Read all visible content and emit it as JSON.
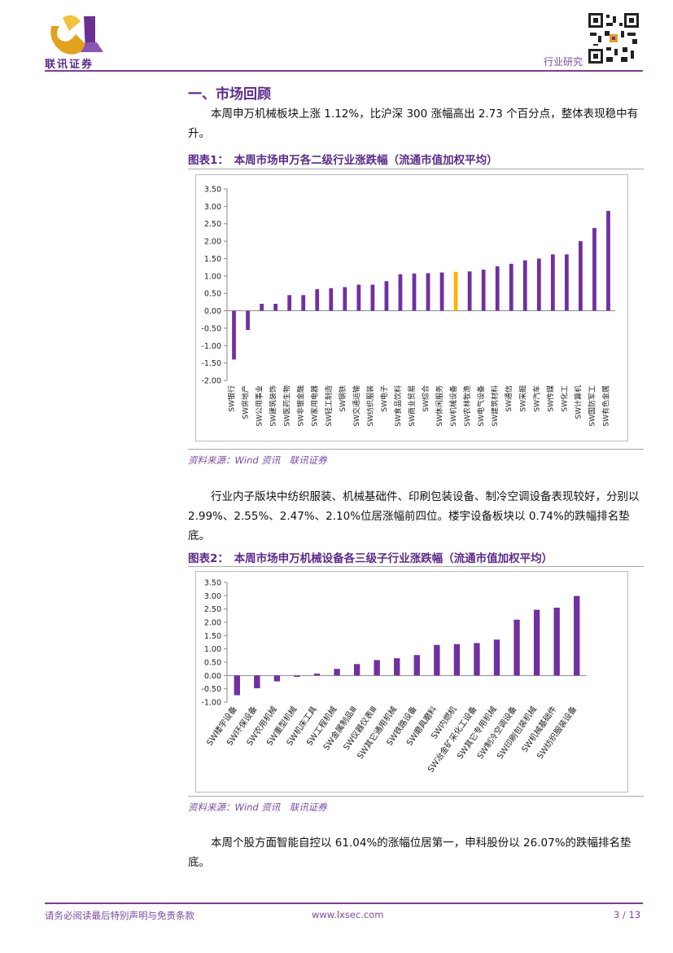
{
  "header": {
    "logo_text": "联讯证券",
    "category": "行业研究"
  },
  "section": {
    "title": "一、市场回顾",
    "para1": "本周申万机械板块上涨 1.12%，比沪深 300 涨幅高出 2.73 个百分点，整体表现稳中有升。",
    "fig1_caption": "图表1：　本周市场申万各二级行业涨跌幅（流通市值加权平均）",
    "fig1_source": "资料来源：Wind 资讯　联讯证券",
    "para2": "行业内子版块中纺织服装、机械基础件、印刷包装设备、制冷空调设备表现较好，分别以 2.99%、2.55%、2.47%、2.10%位居涨幅前四位。楼宇设备板块以 0.74%的跌幅排名垫底。",
    "fig2_caption": "图表2：　本周市场申万机械设备各三级子行业涨跌幅（流通市值加权平均）",
    "fig2_source": "资料来源：Wind 资讯　联讯证券",
    "para3": "本周个股方面智能自控以 61.04%的涨幅位居第一，申科股份以 26.07%的跌幅排名垫底。"
  },
  "footer": {
    "disclaimer": "请务必阅读最后特别声明与免责条款",
    "url": "www.lxsec.com",
    "page": "3 / 13"
  },
  "chart_data": [
    {
      "type": "bar",
      "ylim": [
        -2.0,
        3.5
      ],
      "yticks": [
        "3.50",
        "3.00",
        "2.50",
        "2.00",
        "1.50",
        "1.00",
        "0.50",
        "0.00",
        "-0.50",
        "-1.00",
        "-1.50",
        "-2.00"
      ],
      "categories": [
        "SW银行",
        "SW房地产",
        "SW公用事业",
        "SW建筑装饰",
        "SW医药生物",
        "SW非银金融",
        "SW家用电器",
        "SW轻工制造",
        "SW钢铁",
        "SW交通运输",
        "SW纺织服装",
        "SW电子",
        "SW食品饮料",
        "SW商业贸易",
        "SW综合",
        "SW休闲服务",
        "SW机械设备",
        "SW农林牧渔",
        "SW电气设备",
        "SW建筑材料",
        "SW通信",
        "SW采掘",
        "SW汽车",
        "SW传媒",
        "SW化工",
        "SW计算机",
        "SW国防军工",
        "SW有色金属"
      ],
      "values": [
        -1.4,
        -0.55,
        0.2,
        0.2,
        0.45,
        0.45,
        0.62,
        0.65,
        0.68,
        0.75,
        0.75,
        0.85,
        1.05,
        1.07,
        1.08,
        1.1,
        1.12,
        1.13,
        1.18,
        1.28,
        1.35,
        1.45,
        1.5,
        1.62,
        1.62,
        2.0,
        2.38,
        2.87
      ],
      "highlight": "SW机械设备",
      "bar_color": "#7030a0",
      "highlight_color": "#ffb300"
    },
    {
      "type": "bar",
      "ylim": [
        -1.0,
        3.5
      ],
      "yticks": [
        "3.50",
        "3.00",
        "2.50",
        "2.00",
        "1.50",
        "1.00",
        "0.50",
        "0.00",
        "-0.50",
        "-1.00"
      ],
      "categories": [
        "SW楼宇设备",
        "SW环保设备",
        "SW农用机械",
        "SW重型机械",
        "SW机床工具",
        "SW工程机械",
        "SW金属制品Ⅲ",
        "SW仪器仪表Ⅲ",
        "SW其它通用机械",
        "SW铁路设备",
        "SW磨具磨料",
        "SW内燃机",
        "SW冶金矿采化工设备",
        "SW其它专用机械",
        "SW制冷空调设备",
        "SW印刷包装机械",
        "SW机械基础件",
        "SW纺织服装设备"
      ],
      "values": [
        -0.74,
        -0.48,
        -0.22,
        -0.05,
        0.07,
        0.25,
        0.43,
        0.58,
        0.65,
        0.77,
        1.15,
        1.18,
        1.22,
        1.35,
        2.1,
        2.47,
        2.55,
        2.99
      ],
      "bar_color": "#7030a0"
    }
  ]
}
